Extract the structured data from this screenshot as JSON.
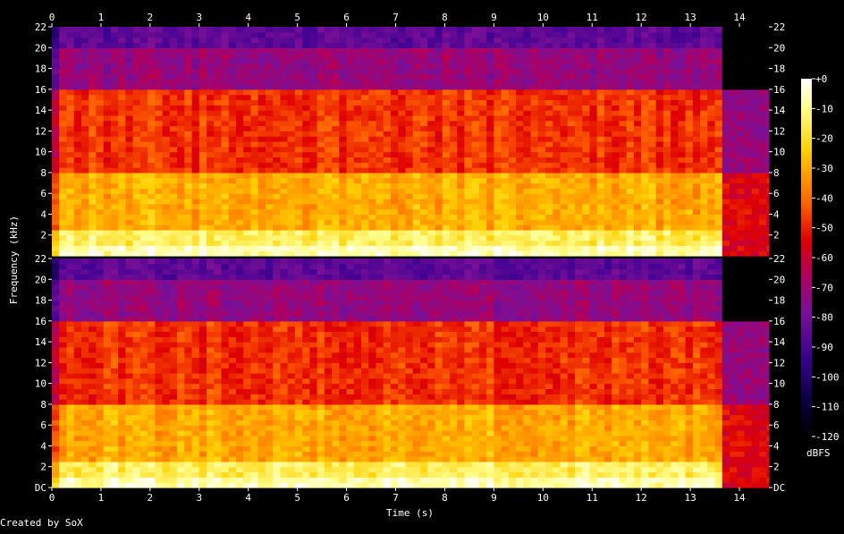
{
  "chart_data": {
    "type": "heatmap",
    "xlabel": "Time (s)",
    "ylabel": "Frequency (kHz)",
    "colorbar_label": "dBFS",
    "credit": "Created by SoX",
    "x_ticks": [
      "0",
      "1",
      "2",
      "3",
      "4",
      "5",
      "6",
      "7",
      "8",
      "9",
      "10",
      "11",
      "12",
      "13",
      "14"
    ],
    "xlim": [
      0,
      14.6
    ],
    "channels": [
      {
        "y_ticks": [
          "22",
          "20",
          "18",
          "16",
          "14",
          "12",
          "10",
          "8",
          "6",
          "4",
          "2"
        ]
      },
      {
        "y_ticks": [
          "22",
          "20",
          "18",
          "16",
          "14",
          "12",
          "10",
          "8",
          "6",
          "4",
          "2",
          "DC"
        ]
      }
    ],
    "ylim": [
      0,
      22
    ],
    "colorbar": {
      "ticks": [
        "+0",
        "-10",
        "-20",
        "-30",
        "-40",
        "-50",
        "-60",
        "-70",
        "-80",
        "-90",
        "-100",
        "-110",
        "-120"
      ],
      "range": [
        0,
        -120
      ]
    },
    "signal_bands": [
      {
        "kHz": [
          0,
          2.3
        ],
        "level_dB": -15
      },
      {
        "kHz": [
          2.3,
          8
        ],
        "level_dB": -30
      },
      {
        "kHz": [
          8,
          16
        ],
        "level_dB": -48
      },
      {
        "kHz": [
          16,
          20
        ],
        "level_dB": -72
      },
      {
        "kHz": [
          20,
          22
        ],
        "level_dB": -85
      }
    ],
    "audio_end_s": 13.65,
    "tail": [
      {
        "kHz": [
          0,
          8
        ],
        "level_dB": -55
      },
      {
        "kHz": [
          8,
          16
        ],
        "level_dB": -72
      },
      {
        "kHz": [
          16,
          22
        ],
        "level_dB": -125
      }
    ],
    "colors": {
      "background": "#000000",
      "text": "#ffffff"
    }
  }
}
